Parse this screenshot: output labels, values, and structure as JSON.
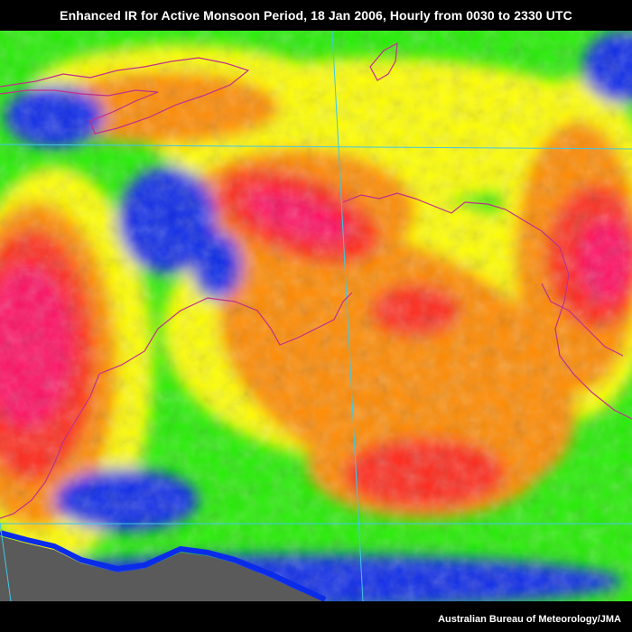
{
  "title": "Enhanced IR for Active Monsoon Period, 18 Jan 2006, Hourly from 0030 to 2330 UTC",
  "credit": "Australian Bureau of Meteorology/JMA",
  "colors": {
    "land_mask": "#5a5a5a",
    "cold_cloud_tops": "#ff1060",
    "deep_convection": "#ff2a1a",
    "orange_band": "#ff8a00",
    "yellow_band": "#ffff00",
    "green_band": "#22ee00",
    "blue_band": "#0a2ce8",
    "coastline": "#c0308a",
    "grid_lines": "#40c8e8"
  }
}
